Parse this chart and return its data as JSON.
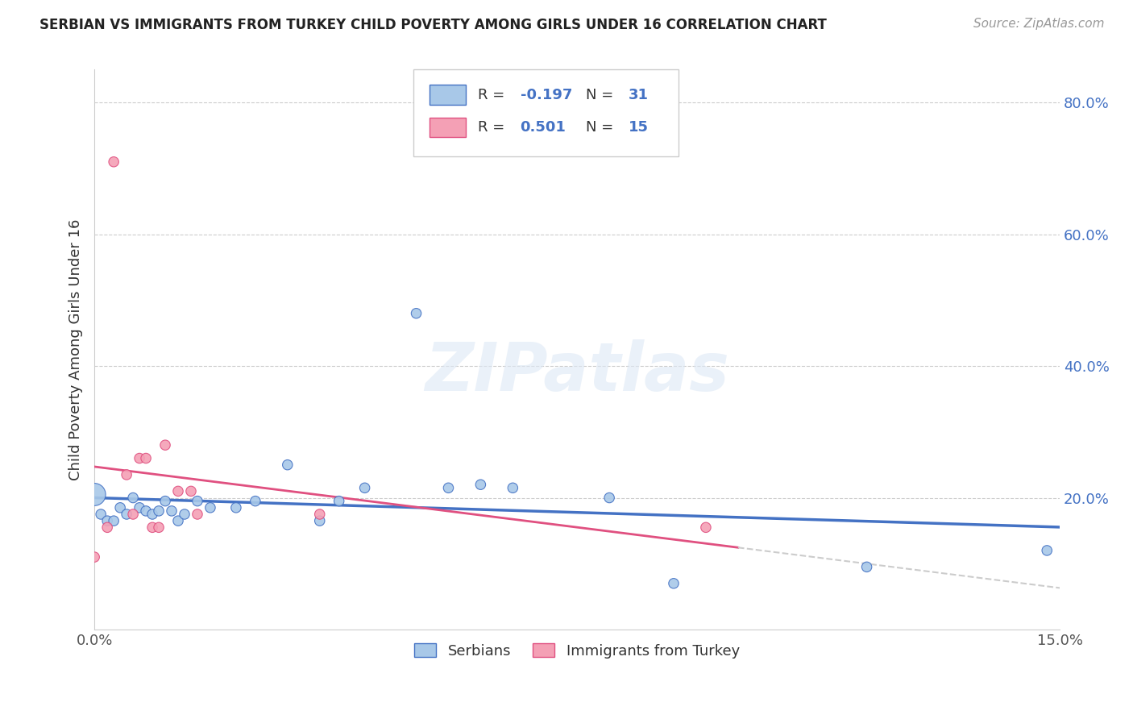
{
  "title": "SERBIAN VS IMMIGRANTS FROM TURKEY CHILD POVERTY AMONG GIRLS UNDER 16 CORRELATION CHART",
  "source": "Source: ZipAtlas.com",
  "ylabel": "Child Poverty Among Girls Under 16",
  "xlim": [
    0.0,
    0.15
  ],
  "ylim": [
    0.0,
    0.85
  ],
  "yticks": [
    0.0,
    0.2,
    0.4,
    0.6,
    0.8
  ],
  "ytick_labels": [
    "",
    "20.0%",
    "40.0%",
    "60.0%",
    "80.0%"
  ],
  "xticks": [
    0.0,
    0.15
  ],
  "xtick_labels": [
    "0.0%",
    "15.0%"
  ],
  "series_serbian": {
    "label": "Serbians",
    "color": "#a8c8e8",
    "edge_color": "#4472c4",
    "R": -0.197,
    "N": 31,
    "x": [
      0.0,
      0.001,
      0.002,
      0.003,
      0.004,
      0.005,
      0.006,
      0.007,
      0.008,
      0.009,
      0.01,
      0.011,
      0.012,
      0.013,
      0.014,
      0.016,
      0.018,
      0.022,
      0.025,
      0.03,
      0.035,
      0.038,
      0.042,
      0.05,
      0.055,
      0.06,
      0.065,
      0.08,
      0.09,
      0.12,
      0.148
    ],
    "y": [
      0.205,
      0.175,
      0.165,
      0.165,
      0.185,
      0.175,
      0.2,
      0.185,
      0.18,
      0.175,
      0.18,
      0.195,
      0.18,
      0.165,
      0.175,
      0.195,
      0.185,
      0.185,
      0.195,
      0.25,
      0.165,
      0.195,
      0.215,
      0.48,
      0.215,
      0.22,
      0.215,
      0.2,
      0.07,
      0.095,
      0.12
    ],
    "size": [
      400,
      80,
      80,
      80,
      80,
      80,
      80,
      80,
      80,
      80,
      80,
      80,
      80,
      80,
      80,
      80,
      80,
      80,
      80,
      80,
      80,
      80,
      80,
      80,
      80,
      80,
      80,
      80,
      80,
      80,
      80
    ]
  },
  "series_turkey": {
    "label": "Immigrants from Turkey",
    "color": "#f4a0b5",
    "edge_color": "#e05080",
    "R": 0.501,
    "N": 15,
    "x": [
      0.0,
      0.002,
      0.003,
      0.005,
      0.006,
      0.007,
      0.008,
      0.009,
      0.01,
      0.011,
      0.013,
      0.015,
      0.016,
      0.035,
      0.095
    ],
    "y": [
      0.11,
      0.155,
      0.71,
      0.235,
      0.175,
      0.26,
      0.26,
      0.155,
      0.155,
      0.28,
      0.21,
      0.21,
      0.175,
      0.175,
      0.155
    ],
    "size": [
      80,
      80,
      80,
      80,
      80,
      80,
      80,
      80,
      80,
      80,
      80,
      80,
      80,
      80,
      80
    ]
  },
  "trend_serbian_color": "#4472c4",
  "trend_turkish_color": "#e05080",
  "trend_dashed_color": "#cccccc",
  "background_color": "#ffffff",
  "watermark_text": "ZIPatlas",
  "legend_serbian_face": "#a8c8e8",
  "legend_turkey_face": "#f4a0b5",
  "legend_R_color": "#4472c4",
  "legend_N_color": "#4472c4"
}
